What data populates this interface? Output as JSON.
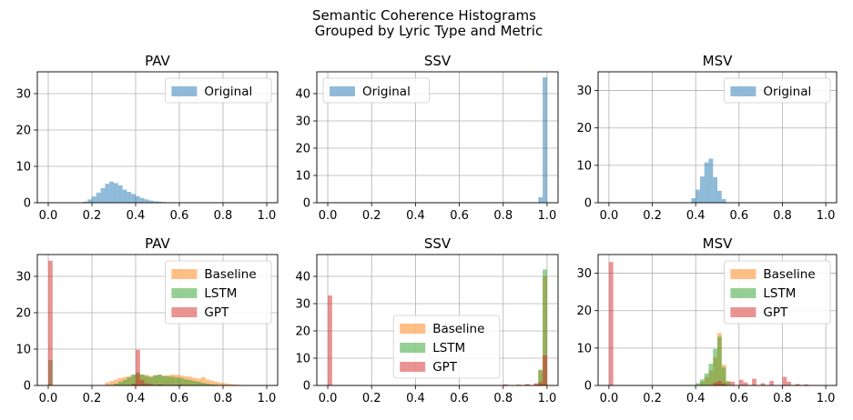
{
  "figure": {
    "title_line1": "Semantic Coherence Histograms",
    "title_line2": "Grouped by Lyric Type and Metric"
  },
  "colors": {
    "Original": "#1f77b4",
    "Baseline": "#ff7f0e",
    "LSTM": "#2ca02c",
    "GPT": "#d62728",
    "grid": "#b0b0b0"
  },
  "chart_data": [
    {
      "type": "bar",
      "title": "PAV",
      "xlim": [
        -0.05,
        1.05
      ],
      "ylim": [
        0,
        36
      ],
      "x_ticks": [
        "0.0",
        "0.2",
        "0.4",
        "0.6",
        "0.8",
        "1.0"
      ],
      "y_ticks": [
        "0",
        "10",
        "20",
        "30"
      ],
      "grid": true,
      "legend": "top-right",
      "bin_width": 0.02,
      "series": [
        {
          "name": "Original",
          "alpha": 0.5,
          "bins": [
            [
              0.16,
              0.3
            ],
            [
              0.18,
              0.9
            ],
            [
              0.2,
              1.7
            ],
            [
              0.22,
              2.8
            ],
            [
              0.24,
              4.0
            ],
            [
              0.26,
              5.2
            ],
            [
              0.28,
              5.8
            ],
            [
              0.3,
              5.4
            ],
            [
              0.32,
              4.8
            ],
            [
              0.34,
              3.6
            ],
            [
              0.36,
              3.0
            ],
            [
              0.38,
              2.4
            ],
            [
              0.4,
              1.8
            ],
            [
              0.42,
              1.3
            ],
            [
              0.44,
              0.9
            ],
            [
              0.46,
              0.6
            ],
            [
              0.48,
              0.4
            ],
            [
              0.5,
              0.3
            ],
            [
              0.52,
              0.2
            ],
            [
              0.54,
              0.1
            ]
          ]
        }
      ]
    },
    {
      "type": "bar",
      "title": "SSV",
      "xlim": [
        -0.05,
        1.05
      ],
      "ylim": [
        0,
        48
      ],
      "x_ticks": [
        "0.0",
        "0.2",
        "0.4",
        "0.6",
        "0.8",
        "1.0"
      ],
      "y_ticks": [
        "0",
        "10",
        "20",
        "30",
        "40"
      ],
      "grid": true,
      "legend": "top-left",
      "bin_width": 0.02,
      "series": [
        {
          "name": "Original",
          "alpha": 0.5,
          "bins": [
            [
              0.96,
              2.0
            ],
            [
              0.98,
              46.0
            ]
          ]
        }
      ]
    },
    {
      "type": "bar",
      "title": "MSV",
      "xlim": [
        -0.05,
        1.05
      ],
      "ylim": [
        0,
        35
      ],
      "x_ticks": [
        "0.0",
        "0.2",
        "0.4",
        "0.6",
        "0.8",
        "1.0"
      ],
      "y_ticks": [
        "0",
        "10",
        "20",
        "30"
      ],
      "grid": true,
      "legend": "top-right",
      "bin_width": 0.02,
      "series": [
        {
          "name": "Original",
          "alpha": 0.5,
          "bins": [
            [
              0.38,
              1.2
            ],
            [
              0.4,
              3.5
            ],
            [
              0.42,
              7.0
            ],
            [
              0.44,
              10.8
            ],
            [
              0.46,
              11.8
            ],
            [
              0.48,
              6.8
            ],
            [
              0.5,
              3.2
            ],
            [
              0.52,
              1.0
            ]
          ]
        }
      ]
    },
    {
      "type": "bar",
      "title": "PAV",
      "xlim": [
        -0.05,
        1.05
      ],
      "ylim": [
        0,
        36
      ],
      "x_ticks": [
        "0.0",
        "0.2",
        "0.4",
        "0.6",
        "0.8",
        "1.0"
      ],
      "y_ticks": [
        "0",
        "10",
        "20",
        "30"
      ],
      "grid": true,
      "legend": "top-right",
      "bin_width": 0.02,
      "series": [
        {
          "name": "Baseline",
          "alpha": 0.5,
          "bins": [
            [
              0.26,
              0.8
            ],
            [
              0.28,
              1.2
            ],
            [
              0.3,
              1.6
            ],
            [
              0.32,
              2.0
            ],
            [
              0.34,
              2.3
            ],
            [
              0.36,
              2.5
            ],
            [
              0.38,
              2.8
            ],
            [
              0.4,
              3.2
            ],
            [
              0.42,
              3.0
            ],
            [
              0.44,
              2.9
            ],
            [
              0.46,
              2.6
            ],
            [
              0.48,
              2.8
            ],
            [
              0.5,
              2.9
            ],
            [
              0.52,
              2.7
            ],
            [
              0.54,
              2.8
            ],
            [
              0.56,
              3.0
            ],
            [
              0.58,
              2.9
            ],
            [
              0.6,
              2.7
            ],
            [
              0.62,
              2.5
            ],
            [
              0.64,
              2.4
            ],
            [
              0.66,
              2.1
            ],
            [
              0.68,
              1.9
            ],
            [
              0.7,
              2.3
            ],
            [
              0.72,
              1.6
            ],
            [
              0.74,
              1.3
            ],
            [
              0.76,
              1.0
            ],
            [
              0.78,
              0.8
            ],
            [
              0.8,
              0.6
            ],
            [
              0.82,
              0.4
            ],
            [
              0.84,
              0.3
            ],
            [
              0.86,
              0.2
            ],
            [
              0.88,
              0.1
            ]
          ]
        },
        {
          "name": "LSTM",
          "alpha": 0.5,
          "bins": [
            [
              0.0,
              7.0
            ],
            [
              0.3,
              0.5
            ],
            [
              0.32,
              1.0
            ],
            [
              0.34,
              1.5
            ],
            [
              0.36,
              2.2
            ],
            [
              0.38,
              3.0
            ],
            [
              0.4,
              3.6
            ],
            [
              0.42,
              3.0
            ],
            [
              0.44,
              2.6
            ],
            [
              0.46,
              2.3
            ],
            [
              0.48,
              2.8
            ],
            [
              0.5,
              3.0
            ],
            [
              0.52,
              2.6
            ],
            [
              0.54,
              2.5
            ],
            [
              0.56,
              2.4
            ],
            [
              0.58,
              2.2
            ],
            [
              0.6,
              2.0
            ],
            [
              0.62,
              1.7
            ],
            [
              0.64,
              1.5
            ],
            [
              0.66,
              1.2
            ],
            [
              0.68,
              1.0
            ],
            [
              0.7,
              0.7
            ],
            [
              0.72,
              0.5
            ],
            [
              0.74,
              0.3
            ],
            [
              0.76,
              0.2
            ]
          ]
        },
        {
          "name": "GPT",
          "alpha": 0.5,
          "bins": [
            [
              0.0,
              34.3
            ],
            [
              0.4,
              9.8
            ],
            [
              0.42,
              1.5
            ],
            [
              0.44,
              0.6
            ],
            [
              0.46,
              0.4
            ],
            [
              0.38,
              0.5
            ],
            [
              0.5,
              0.3
            ],
            [
              0.6,
              0.2
            ]
          ]
        }
      ]
    },
    {
      "type": "bar",
      "title": "SSV",
      "xlim": [
        -0.05,
        1.05
      ],
      "ylim": [
        0,
        48
      ],
      "x_ticks": [
        "0.0",
        "0.2",
        "0.4",
        "0.6",
        "0.8",
        "1.0"
      ],
      "y_ticks": [
        "0",
        "10",
        "20",
        "30",
        "40"
      ],
      "grid": true,
      "legend": "bottom-center",
      "bin_width": 0.02,
      "series": [
        {
          "name": "Baseline",
          "alpha": 0.5,
          "bins": [
            [
              0.8,
              0.3
            ],
            [
              0.86,
              0.2
            ],
            [
              0.9,
              0.4
            ],
            [
              0.94,
              0.5
            ],
            [
              0.96,
              5.5
            ],
            [
              0.98,
              40.0
            ]
          ]
        },
        {
          "name": "LSTM",
          "alpha": 0.5,
          "bins": [
            [
              0.96,
              5.8
            ],
            [
              0.98,
              42.5
            ]
          ]
        },
        {
          "name": "GPT",
          "alpha": 0.5,
          "bins": [
            [
              0.0,
              33.0
            ],
            [
              0.8,
              0.4
            ],
            [
              0.86,
              0.3
            ],
            [
              0.9,
              0.5
            ],
            [
              0.94,
              0.8
            ],
            [
              0.96,
              1.2
            ],
            [
              0.98,
              11.0
            ]
          ]
        }
      ]
    },
    {
      "type": "bar",
      "title": "MSV",
      "xlim": [
        -0.05,
        1.05
      ],
      "ylim": [
        0,
        35
      ],
      "x_ticks": [
        "0.0",
        "0.2",
        "0.4",
        "0.6",
        "0.8",
        "1.0"
      ],
      "y_ticks": [
        "0",
        "10",
        "20",
        "30"
      ],
      "grid": true,
      "legend": "top-right",
      "bin_width": 0.02,
      "series": [
        {
          "name": "Baseline",
          "alpha": 0.5,
          "bins": [
            [
              0.42,
              1.0
            ],
            [
              0.44,
              2.2
            ],
            [
              0.46,
              4.0
            ],
            [
              0.48,
              7.5
            ],
            [
              0.5,
              14.0
            ],
            [
              0.52,
              5.5
            ],
            [
              0.54,
              1.2
            ]
          ]
        },
        {
          "name": "LSTM",
          "alpha": 0.5,
          "bins": [
            [
              0.4,
              0.6
            ],
            [
              0.42,
              1.6
            ],
            [
              0.44,
              3.2
            ],
            [
              0.46,
              5.8
            ],
            [
              0.48,
              9.8
            ],
            [
              0.5,
              13.0
            ],
            [
              0.52,
              4.8
            ],
            [
              0.54,
              1.0
            ]
          ]
        },
        {
          "name": "GPT",
          "alpha": 0.5,
          "bins": [
            [
              0.0,
              33.0
            ],
            [
              0.48,
              0.8
            ],
            [
              0.5,
              1.2
            ],
            [
              0.52,
              0.6
            ],
            [
              0.56,
              1.0
            ],
            [
              0.6,
              1.5
            ],
            [
              0.62,
              0.8
            ],
            [
              0.66,
              1.8
            ],
            [
              0.7,
              0.6
            ],
            [
              0.74,
              1.2
            ],
            [
              0.8,
              2.3
            ],
            [
              0.82,
              1.0
            ],
            [
              0.86,
              0.4
            ],
            [
              0.9,
              0.3
            ]
          ]
        }
      ]
    }
  ]
}
